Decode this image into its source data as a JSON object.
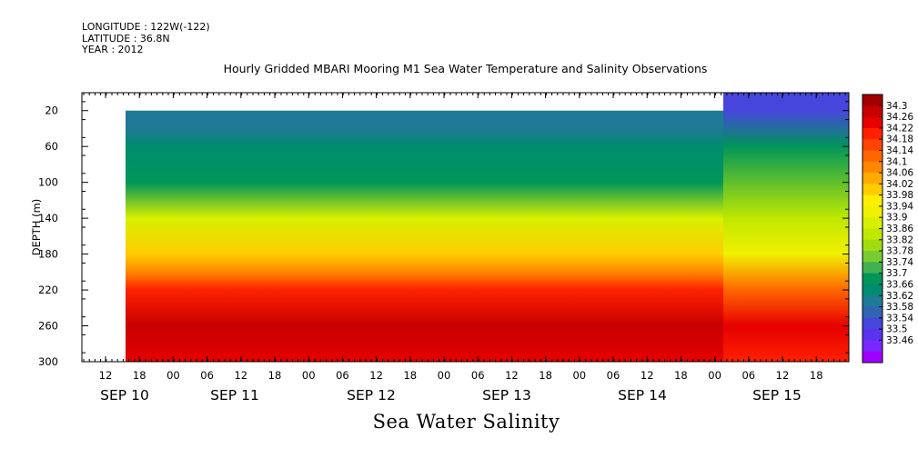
{
  "header": {
    "longitude": "LONGITUDE : 122W(-122)",
    "latitude": "LATITUDE : 36.8N",
    "year": "YEAR : 2012"
  },
  "chart_data": {
    "type": "heatmap",
    "title": "Hourly Gridded MBARI Mooring M1 Sea Water Temperature and Salinity Observations",
    "xlabel": "Sea Water Salinity",
    "ylabel": "DEPTH (m)",
    "ylim": [
      300,
      0
    ],
    "y_ticks": [
      20,
      60,
      100,
      140,
      180,
      220,
      260,
      300
    ],
    "x_hour_ticks": [
      "12",
      "18",
      "00",
      "06",
      "12",
      "18",
      "00",
      "06",
      "12",
      "18",
      "00",
      "06",
      "12",
      "18",
      "00",
      "06",
      "12",
      "18",
      "00",
      "06",
      "12",
      "18"
    ],
    "x_day_labels": [
      "SEP 10",
      "SEP 11",
      "SEP 12",
      "SEP 13",
      "SEP 14",
      "SEP 15"
    ],
    "colorbar_levels": [
      "34.3",
      "34.26",
      "34.22",
      "34.18",
      "34.14",
      "34.1",
      "34.06",
      "34.02",
      "33.98",
      "33.94",
      "33.9",
      "33.86",
      "33.82",
      "33.78",
      "33.74",
      "33.7",
      "33.66",
      "33.62",
      "33.58",
      "33.54",
      "33.5",
      "33.46"
    ],
    "colors": [
      "#a00000",
      "#c80000",
      "#e60000",
      "#ff2000",
      "#ff4400",
      "#ff6600",
      "#ff8800",
      "#ffaa00",
      "#ffcc00",
      "#ffee00",
      "#f0f000",
      "#d8f000",
      "#c0e800",
      "#a0dc10",
      "#78cc30",
      "#40b050",
      "#00965a",
      "#008c6e",
      "#1e7a96",
      "#3264b4",
      "#4646dc",
      "#5a32f0",
      "#7828ff",
      "#a000ff"
    ],
    "steady_profile": [
      {
        "depth": 20,
        "salinity": 33.63
      },
      {
        "depth": 40,
        "salinity": 33.66
      },
      {
        "depth": 60,
        "salinity": 33.68
      },
      {
        "depth": 100,
        "salinity": 33.7
      },
      {
        "depth": 140,
        "salinity": 33.9
      },
      {
        "depth": 180,
        "salinity": 34.02
      },
      {
        "depth": 200,
        "salinity": 34.08
      },
      {
        "depth": 220,
        "salinity": 34.18
      },
      {
        "depth": 260,
        "salinity": 34.28
      },
      {
        "depth": 300,
        "salinity": 34.24
      }
    ],
    "sep15_profile": [
      {
        "depth": 0,
        "salinity": 33.56
      },
      {
        "depth": 20,
        "salinity": 33.58
      },
      {
        "depth": 60,
        "salinity": 33.72
      },
      {
        "depth": 140,
        "salinity": 33.86
      },
      {
        "depth": 180,
        "salinity": 33.94
      },
      {
        "depth": 220,
        "salinity": 34.1
      },
      {
        "depth": 260,
        "salinity": 34.22
      },
      {
        "depth": 300,
        "salinity": 34.18
      }
    ]
  }
}
